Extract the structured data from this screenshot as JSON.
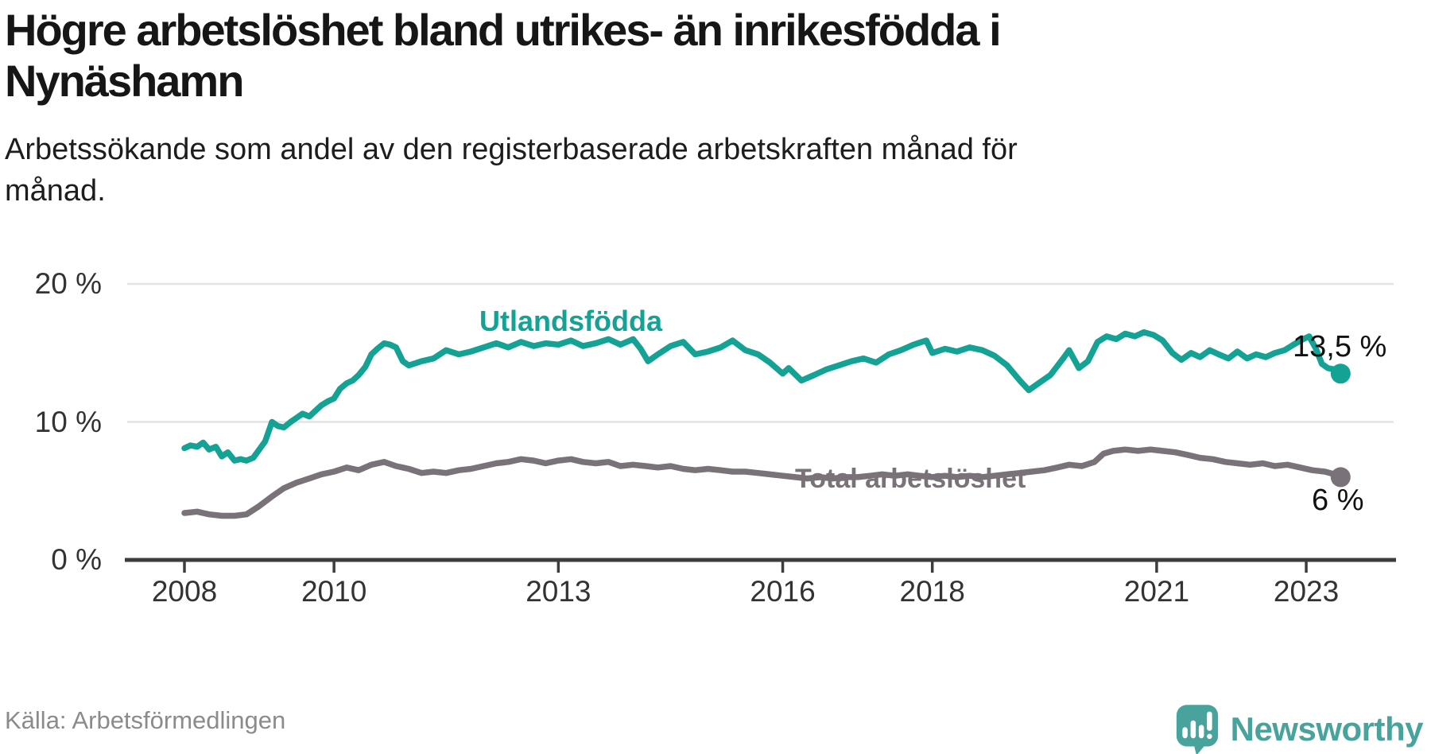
{
  "header": {
    "title_lines": [
      "Högre arbetslöshet bland utrikes- än inrikesfödda i",
      "Nynäshamn"
    ],
    "subtitle_lines": [
      "Arbetssökande som andel av den registerbaserade arbetskraften månad för",
      "månad."
    ]
  },
  "footer": {
    "source": "Källa: Arbetsförmedlingen",
    "brand_name": "Newsworthy"
  },
  "colors": {
    "series_foreign_born": "#14a295",
    "series_total": "#797379",
    "gridline": "#e3e3e3",
    "axis": "#3d3d3d",
    "tick_label": "#333333",
    "title_text": "#161616",
    "source_text": "#8b8b8b",
    "brand_teal": "#48a39c",
    "end_label_text": "#111111"
  },
  "chart_data": {
    "type": "line",
    "title": "Högre arbetslöshet bland utrikes- än inrikesfödda i Nynäshamn",
    "subtitle": "Arbetssökande som andel av den registerbaserade arbetskraften månad för månad.",
    "xlabel": "",
    "ylabel": "",
    "unit": "%",
    "grid": "horizontal-only",
    "legend": "inline-labels",
    "x_axis": {
      "range_years": [
        2007.7,
        2023.9
      ],
      "ticks": [
        {
          "year": 2008,
          "label": "2008"
        },
        {
          "year": 2010,
          "label": "2010"
        },
        {
          "year": 2013,
          "label": "2013"
        },
        {
          "year": 2016,
          "label": "2016"
        },
        {
          "year": 2018,
          "label": "2018"
        },
        {
          "year": 2021,
          "label": "2021"
        },
        {
          "year": 2023,
          "label": "2023"
        }
      ]
    },
    "y_axis": {
      "range": [
        0,
        20
      ],
      "ticks": [
        {
          "value": 0,
          "label": "0 %"
        },
        {
          "value": 10,
          "label": "10 %"
        },
        {
          "value": 20,
          "label": "20 %"
        }
      ]
    },
    "series": [
      {
        "name": "Utlandsfödda",
        "label_annotation": "Utlandsfödda",
        "end_label": "13,5 %",
        "end_value": 13.5,
        "color": "#14a295",
        "points": [
          [
            2008.0,
            8.1
          ],
          [
            2008.08,
            8.3
          ],
          [
            2008.17,
            8.2
          ],
          [
            2008.25,
            8.5
          ],
          [
            2008.33,
            8.0
          ],
          [
            2008.42,
            8.2
          ],
          [
            2008.5,
            7.5
          ],
          [
            2008.58,
            7.8
          ],
          [
            2008.67,
            7.2
          ],
          [
            2008.75,
            7.3
          ],
          [
            2008.83,
            7.2
          ],
          [
            2008.92,
            7.4
          ],
          [
            2009.0,
            8.0
          ],
          [
            2009.08,
            8.6
          ],
          [
            2009.17,
            10.0
          ],
          [
            2009.25,
            9.7
          ],
          [
            2009.33,
            9.6
          ],
          [
            2009.42,
            10.0
          ],
          [
            2009.5,
            10.3
          ],
          [
            2009.58,
            10.6
          ],
          [
            2009.67,
            10.4
          ],
          [
            2009.75,
            10.8
          ],
          [
            2009.83,
            11.2
          ],
          [
            2009.92,
            11.5
          ],
          [
            2010.0,
            11.7
          ],
          [
            2010.08,
            12.4
          ],
          [
            2010.17,
            12.8
          ],
          [
            2010.25,
            13.0
          ],
          [
            2010.33,
            13.4
          ],
          [
            2010.42,
            14.0
          ],
          [
            2010.5,
            14.9
          ],
          [
            2010.58,
            15.3
          ],
          [
            2010.67,
            15.7
          ],
          [
            2010.75,
            15.6
          ],
          [
            2010.83,
            15.4
          ],
          [
            2010.92,
            14.4
          ],
          [
            2011.0,
            14.1
          ],
          [
            2011.17,
            14.4
          ],
          [
            2011.33,
            14.6
          ],
          [
            2011.5,
            15.2
          ],
          [
            2011.67,
            14.9
          ],
          [
            2011.83,
            15.1
          ],
          [
            2012.0,
            15.4
          ],
          [
            2012.17,
            15.7
          ],
          [
            2012.33,
            15.4
          ],
          [
            2012.5,
            15.8
          ],
          [
            2012.67,
            15.5
          ],
          [
            2012.83,
            15.7
          ],
          [
            2013.0,
            15.6
          ],
          [
            2013.17,
            15.9
          ],
          [
            2013.33,
            15.5
          ],
          [
            2013.5,
            15.7
          ],
          [
            2013.67,
            16.0
          ],
          [
            2013.83,
            15.6
          ],
          [
            2014.0,
            16.0
          ],
          [
            2014.1,
            15.3
          ],
          [
            2014.2,
            14.4
          ],
          [
            2014.33,
            14.9
          ],
          [
            2014.5,
            15.5
          ],
          [
            2014.67,
            15.8
          ],
          [
            2014.83,
            14.9
          ],
          [
            2015.0,
            15.1
          ],
          [
            2015.17,
            15.4
          ],
          [
            2015.33,
            15.9
          ],
          [
            2015.5,
            15.2
          ],
          [
            2015.67,
            14.9
          ],
          [
            2015.83,
            14.3
          ],
          [
            2016.0,
            13.5
          ],
          [
            2016.08,
            13.9
          ],
          [
            2016.25,
            13.0
          ],
          [
            2016.42,
            13.4
          ],
          [
            2016.58,
            13.8
          ],
          [
            2016.75,
            14.1
          ],
          [
            2016.92,
            14.4
          ],
          [
            2017.08,
            14.6
          ],
          [
            2017.25,
            14.3
          ],
          [
            2017.42,
            14.9
          ],
          [
            2017.58,
            15.2
          ],
          [
            2017.75,
            15.6
          ],
          [
            2017.92,
            15.9
          ],
          [
            2018.0,
            15.0
          ],
          [
            2018.17,
            15.3
          ],
          [
            2018.33,
            15.1
          ],
          [
            2018.5,
            15.4
          ],
          [
            2018.67,
            15.2
          ],
          [
            2018.83,
            14.8
          ],
          [
            2019.0,
            14.1
          ],
          [
            2019.17,
            13.0
          ],
          [
            2019.29,
            12.3
          ],
          [
            2019.42,
            12.8
          ],
          [
            2019.58,
            13.4
          ],
          [
            2019.75,
            14.6
          ],
          [
            2019.83,
            15.2
          ],
          [
            2019.96,
            13.9
          ],
          [
            2020.08,
            14.4
          ],
          [
            2020.21,
            15.8
          ],
          [
            2020.33,
            16.2
          ],
          [
            2020.46,
            16.0
          ],
          [
            2020.58,
            16.4
          ],
          [
            2020.71,
            16.2
          ],
          [
            2020.83,
            16.5
          ],
          [
            2020.96,
            16.3
          ],
          [
            2021.08,
            15.9
          ],
          [
            2021.21,
            15.0
          ],
          [
            2021.33,
            14.5
          ],
          [
            2021.46,
            15.0
          ],
          [
            2021.58,
            14.7
          ],
          [
            2021.71,
            15.2
          ],
          [
            2021.83,
            14.9
          ],
          [
            2021.96,
            14.6
          ],
          [
            2022.08,
            15.1
          ],
          [
            2022.21,
            14.6
          ],
          [
            2022.33,
            14.9
          ],
          [
            2022.46,
            14.7
          ],
          [
            2022.58,
            15.0
          ],
          [
            2022.71,
            15.2
          ],
          [
            2022.83,
            15.6
          ],
          [
            2022.96,
            16.0
          ],
          [
            2023.04,
            16.2
          ],
          [
            2023.13,
            15.3
          ],
          [
            2023.21,
            14.2
          ],
          [
            2023.29,
            13.9
          ],
          [
            2023.38,
            13.8
          ],
          [
            2023.46,
            13.5
          ]
        ]
      },
      {
        "name": "Total arbetslöshet",
        "label_annotation": "Total arbetslöshet",
        "end_label": "6 %",
        "end_value": 6.0,
        "color": "#797379",
        "points": [
          [
            2008.0,
            3.4
          ],
          [
            2008.17,
            3.5
          ],
          [
            2008.33,
            3.3
          ],
          [
            2008.5,
            3.2
          ],
          [
            2008.67,
            3.2
          ],
          [
            2008.83,
            3.3
          ],
          [
            2009.0,
            3.9
          ],
          [
            2009.17,
            4.6
          ],
          [
            2009.33,
            5.2
          ],
          [
            2009.5,
            5.6
          ],
          [
            2009.67,
            5.9
          ],
          [
            2009.83,
            6.2
          ],
          [
            2010.0,
            6.4
          ],
          [
            2010.17,
            6.7
          ],
          [
            2010.33,
            6.5
          ],
          [
            2010.5,
            6.9
          ],
          [
            2010.67,
            7.1
          ],
          [
            2010.83,
            6.8
          ],
          [
            2011.0,
            6.6
          ],
          [
            2011.17,
            6.3
          ],
          [
            2011.33,
            6.4
          ],
          [
            2011.5,
            6.3
          ],
          [
            2011.67,
            6.5
          ],
          [
            2011.83,
            6.6
          ],
          [
            2012.0,
            6.8
          ],
          [
            2012.17,
            7.0
          ],
          [
            2012.33,
            7.1
          ],
          [
            2012.5,
            7.3
          ],
          [
            2012.67,
            7.2
          ],
          [
            2012.83,
            7.0
          ],
          [
            2013.0,
            7.2
          ],
          [
            2013.17,
            7.3
          ],
          [
            2013.33,
            7.1
          ],
          [
            2013.5,
            7.0
          ],
          [
            2013.67,
            7.1
          ],
          [
            2013.83,
            6.8
          ],
          [
            2014.0,
            6.9
          ],
          [
            2014.17,
            6.8
          ],
          [
            2014.33,
            6.7
          ],
          [
            2014.5,
            6.8
          ],
          [
            2014.67,
            6.6
          ],
          [
            2014.83,
            6.5
          ],
          [
            2015.0,
            6.6
          ],
          [
            2015.17,
            6.5
          ],
          [
            2015.33,
            6.4
          ],
          [
            2015.5,
            6.4
          ],
          [
            2015.67,
            6.3
          ],
          [
            2015.83,
            6.2
          ],
          [
            2016.0,
            6.1
          ],
          [
            2016.17,
            6.0
          ],
          [
            2016.33,
            5.9
          ],
          [
            2016.5,
            6.0
          ],
          [
            2016.67,
            5.9
          ],
          [
            2016.83,
            6.0
          ],
          [
            2017.0,
            6.0
          ],
          [
            2017.17,
            6.1
          ],
          [
            2017.33,
            6.2
          ],
          [
            2017.5,
            6.1
          ],
          [
            2017.67,
            6.2
          ],
          [
            2017.83,
            6.1
          ],
          [
            2018.0,
            6.0
          ],
          [
            2018.17,
            6.1
          ],
          [
            2018.33,
            6.0
          ],
          [
            2018.5,
            6.1
          ],
          [
            2018.67,
            6.0
          ],
          [
            2018.83,
            6.1
          ],
          [
            2019.0,
            6.2
          ],
          [
            2019.17,
            6.3
          ],
          [
            2019.33,
            6.4
          ],
          [
            2019.5,
            6.5
          ],
          [
            2019.67,
            6.7
          ],
          [
            2019.83,
            6.9
          ],
          [
            2020.0,
            6.8
          ],
          [
            2020.17,
            7.1
          ],
          [
            2020.29,
            7.7
          ],
          [
            2020.42,
            7.9
          ],
          [
            2020.58,
            8.0
          ],
          [
            2020.75,
            7.9
          ],
          [
            2020.92,
            8.0
          ],
          [
            2021.08,
            7.9
          ],
          [
            2021.25,
            7.8
          ],
          [
            2021.42,
            7.6
          ],
          [
            2021.58,
            7.4
          ],
          [
            2021.75,
            7.3
          ],
          [
            2021.92,
            7.1
          ],
          [
            2022.08,
            7.0
          ],
          [
            2022.25,
            6.9
          ],
          [
            2022.42,
            7.0
          ],
          [
            2022.58,
            6.8
          ],
          [
            2022.75,
            6.9
          ],
          [
            2022.92,
            6.7
          ],
          [
            2023.08,
            6.5
          ],
          [
            2023.25,
            6.4
          ],
          [
            2023.38,
            6.2
          ],
          [
            2023.46,
            6.0
          ]
        ]
      }
    ]
  }
}
